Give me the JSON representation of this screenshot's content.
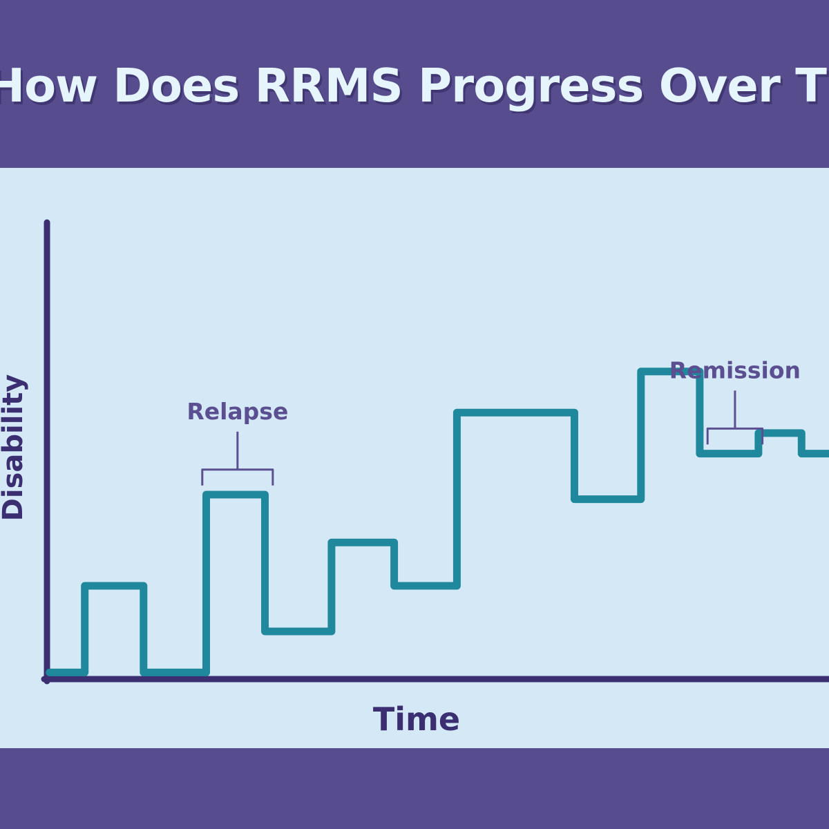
{
  "header": {
    "title": "How Does RRMS Progress Over Time?"
  },
  "colors": {
    "background": "#574d8e",
    "panel": "#d4e9f5",
    "axis": "#3b2f72",
    "line": "#1f889c",
    "annotation": "#5b4f92",
    "title_text": "#e6f5fb"
  },
  "chart_data": {
    "type": "line",
    "step": true,
    "title": "How Does RRMS Progress Over Time?",
    "xlabel": "Time",
    "ylabel": "Disability",
    "xlim": [
      0,
      100
    ],
    "ylim": [
      0,
      100
    ],
    "grid": false,
    "legend": "none",
    "ticks": false,
    "series": [
      {
        "points": [
          [
            0.5,
            1
          ],
          [
            5,
            1
          ],
          [
            5,
            20
          ],
          [
            12.5,
            20
          ],
          [
            12.5,
            1
          ],
          [
            20.5,
            1
          ],
          [
            20.5,
            40
          ],
          [
            28,
            40
          ],
          [
            28,
            10
          ],
          [
            36.5,
            10
          ],
          [
            36.5,
            29.5
          ],
          [
            44.5,
            29.5
          ],
          [
            44.5,
            20
          ],
          [
            52.5,
            20
          ],
          [
            52.5,
            58
          ],
          [
            67.5,
            58
          ],
          [
            67.5,
            39
          ],
          [
            76,
            39
          ],
          [
            76,
            67
          ],
          [
            83.5,
            67
          ],
          [
            83.5,
            49
          ],
          [
            91,
            49
          ],
          [
            91,
            53.5
          ],
          [
            96.5,
            53.5
          ],
          [
            96.5,
            49
          ],
          [
            101,
            49
          ]
        ]
      }
    ],
    "annotations": [
      {
        "text": "Relapse",
        "x_range": [
          20,
          29
        ],
        "y": 42
      },
      {
        "text": "Remission",
        "x_range": [
          84.5,
          91.5
        ],
        "y": 51
      }
    ]
  }
}
